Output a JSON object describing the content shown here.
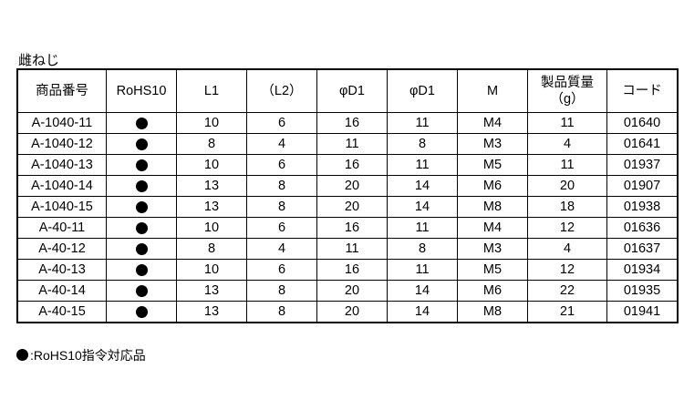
{
  "title": "雌ねじ",
  "headers": [
    "商品番号",
    "RoHS10",
    "L1",
    "（L2）",
    "φD1",
    "φD1",
    "M",
    "製品質量\n（g）",
    "コード"
  ],
  "rows": [
    [
      "A-1040-11",
      "●",
      "10",
      "6",
      "16",
      "11",
      "M4",
      "11",
      "01640"
    ],
    [
      "A-1040-12",
      "●",
      "8",
      "4",
      "11",
      "8",
      "M3",
      "4",
      "01641"
    ],
    [
      "A-1040-13",
      "●",
      "10",
      "6",
      "16",
      "11",
      "M5",
      "11",
      "01937"
    ],
    [
      "A-1040-14",
      "●",
      "13",
      "8",
      "20",
      "14",
      "M6",
      "20",
      "01907"
    ],
    [
      "A-1040-15",
      "●",
      "13",
      "8",
      "20",
      "14",
      "M8",
      "18",
      "01938"
    ],
    [
      "A-40-11",
      "●",
      "10",
      "6",
      "16",
      "11",
      "M4",
      "12",
      "01636"
    ],
    [
      "A-40-12",
      "●",
      "8",
      "4",
      "11",
      "8",
      "M3",
      "4",
      "01637"
    ],
    [
      "A-40-13",
      "●",
      "10",
      "6",
      "16",
      "11",
      "M5",
      "12",
      "01934"
    ],
    [
      "A-40-14",
      "●",
      "13",
      "8",
      "20",
      "14",
      "M6",
      "22",
      "01935"
    ],
    [
      "A-40-15",
      "●",
      "13",
      "8",
      "20",
      "14",
      "M8",
      "21",
      "01941"
    ]
  ],
  "note": ":RoHS10指令対応品"
}
